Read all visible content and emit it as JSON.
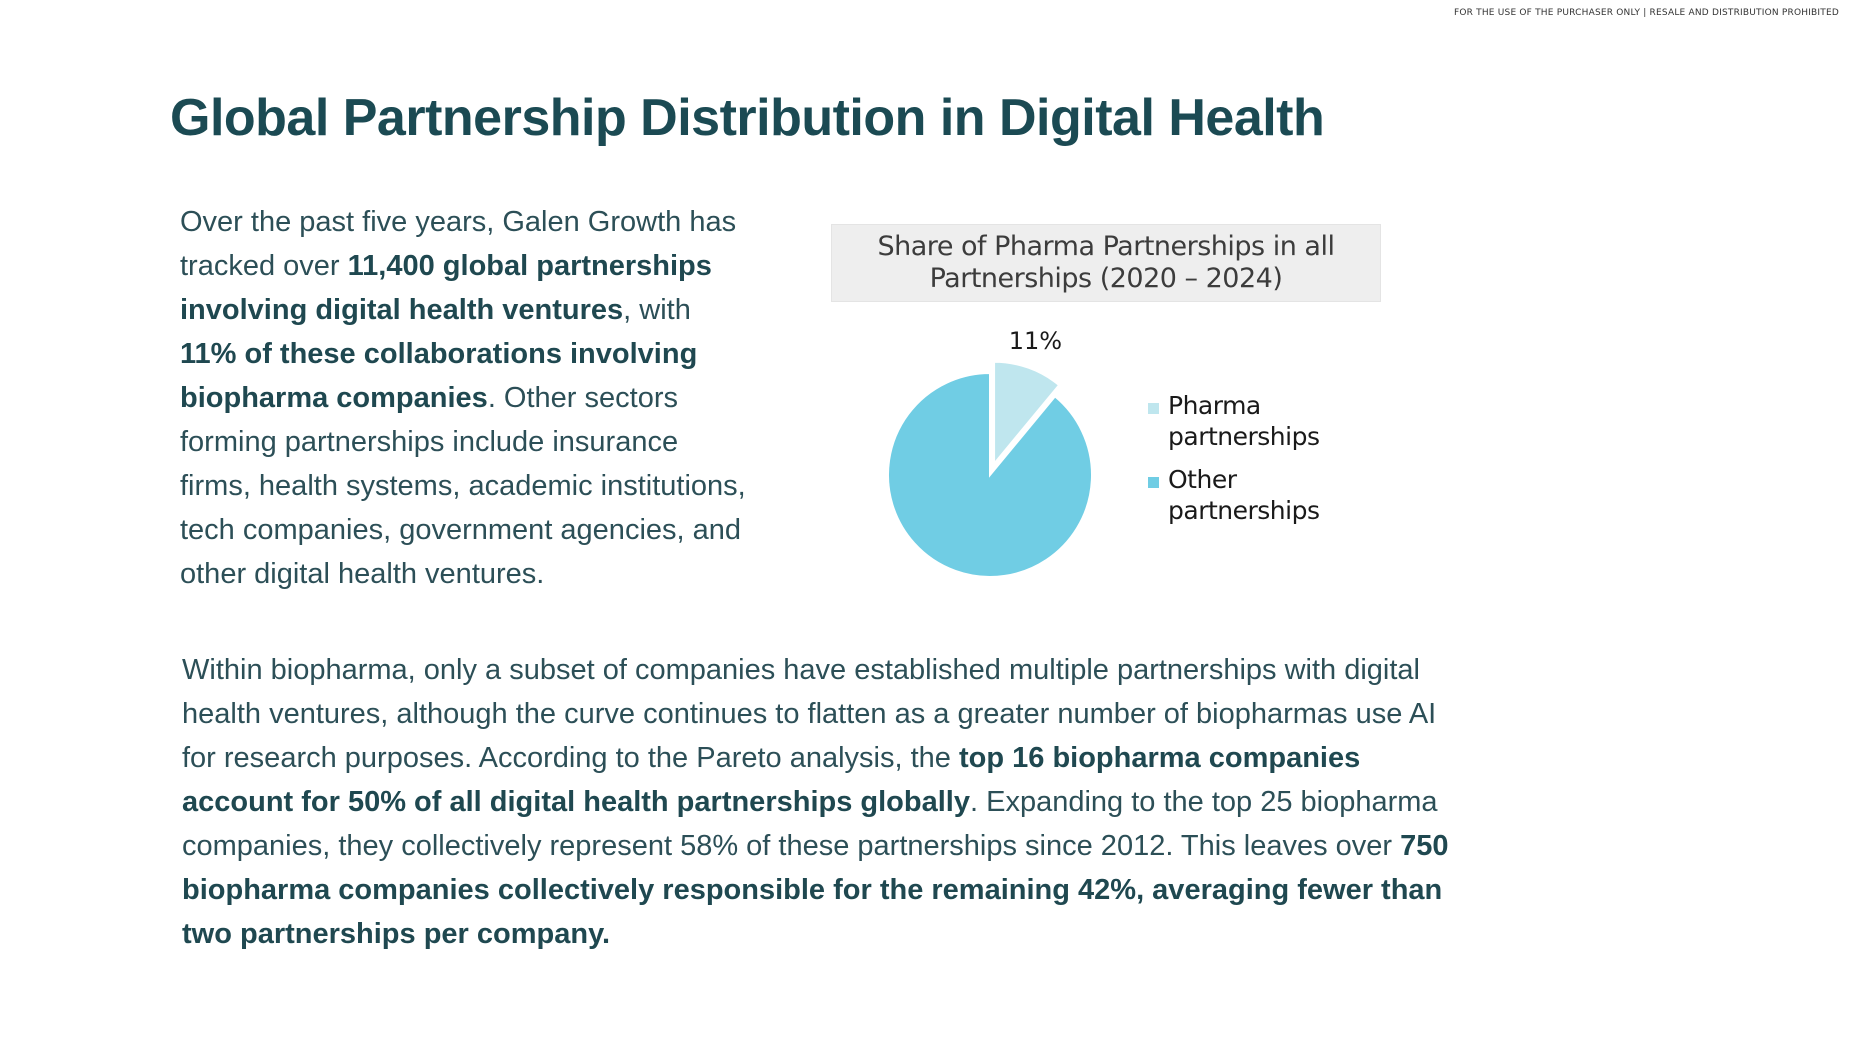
{
  "header": {
    "notice": "FOR THE USE OF THE PURCHASER ONLY | RESALE AND DISTRIBUTION PROHIBITED",
    "title": "Global Partnership Distribution in Digital Health"
  },
  "intro": {
    "s1": "Over the past five years, Galen Growth has tracked over ",
    "b1": "11,400 global partnerships involving digital health ventures",
    "s2": ", with ",
    "b2": "11% of these collaborations involving biopharma companies",
    "s3": ". Other sectors forming partnerships include insurance firms, health systems, academic institutions, tech companies, government agencies, and other digital health ventures."
  },
  "body": {
    "s1": "Within biopharma, only a subset of companies have established multiple partnerships with digital health ventures, although the curve continues to flatten as a greater number of biopharmas use AI for research purposes. According to the Pareto analysis, the ",
    "b1": "top 16 biopharma companies account for 50% of all digital health partnerships globally",
    "s2": ". Expanding to the top 25 biopharma companies, they collectively represent 58% of these partnerships since 2012. This leaves over ",
    "b2": "750 biopharma companies collectively responsible for the remaining 42%, averaging fewer than two partnerships per company."
  },
  "chart_data": {
    "type": "pie",
    "title": "Share of Pharma Partnerships in all Partnerships (2020 – 2024)",
    "title_line1": "Share of Pharma Partnerships in all",
    "title_line2": "Partnerships (2020 – 2024)",
    "slices": [
      {
        "name": "Pharma partnerships",
        "name_line1": "Pharma",
        "name_line2": "partnerships",
        "value": 11,
        "label": "11%",
        "color": "#bfe6ee",
        "exploded": true
      },
      {
        "name": "Other partnerships",
        "name_line1": "Other",
        "name_line2": "partnerships",
        "value": 89,
        "label": "",
        "color": "#70cde4",
        "exploded": false
      }
    ],
    "legend_position": "right"
  }
}
